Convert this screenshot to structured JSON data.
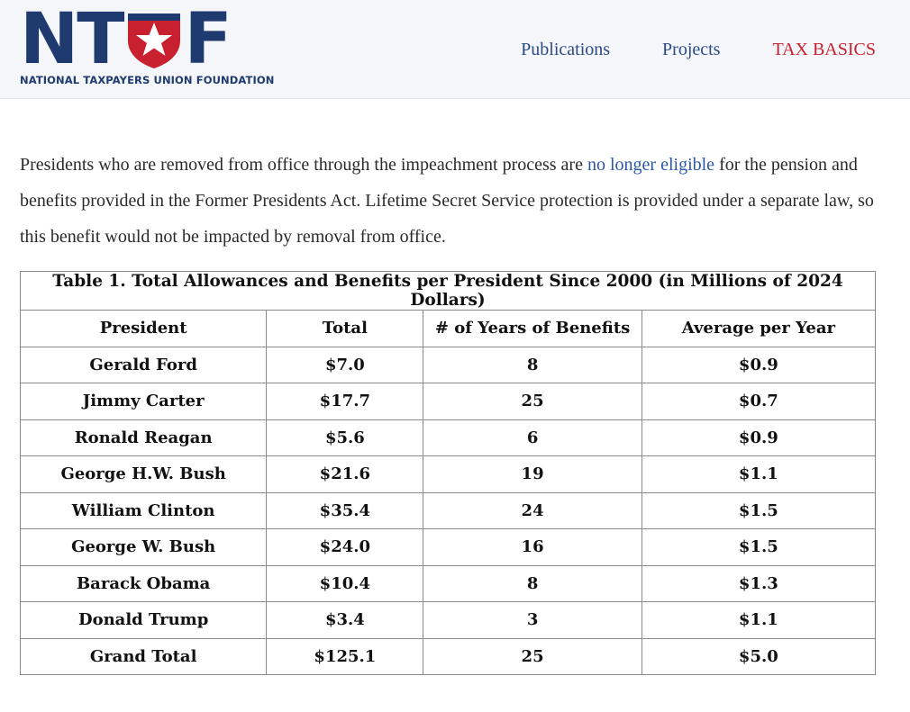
{
  "header": {
    "logo": {
      "letters": [
        "N",
        "T",
        "F"
      ],
      "subtitle": "NATIONAL TAXPAYERS UNION FOUNDATION"
    },
    "nav": [
      {
        "label": "Publications"
      },
      {
        "label": "Projects"
      },
      {
        "label": "TAX BASICS",
        "accent": "#c8202f"
      }
    ],
    "colors": {
      "brand_blue": "#1f3a6e",
      "brand_red": "#c8202f"
    }
  },
  "intro": {
    "before_link": "Presidents who are removed from office through the impeachment process are ",
    "link_text": "no longer eligible",
    "after_link": " for the pension and benefits provided in the Former Presidents Act. Lifetime Secret Service protection is provided under a separate law, so this benefit would not be impacted by removal from office."
  },
  "table": {
    "caption": "Table 1. Total Allowances and Benefits per President Since 2000 (in Millions of 2024 Dollars)",
    "headers": [
      "President",
      "Total",
      "# of Years of Benefits",
      "Average per Year"
    ],
    "rows": [
      [
        "Gerald Ford",
        "$7.0",
        "8",
        "$0.9"
      ],
      [
        "Jimmy Carter",
        "$17.7",
        "25",
        "$0.7"
      ],
      [
        "Ronald Reagan",
        "$5.6",
        "6",
        "$0.9"
      ],
      [
        "George H.W. Bush",
        "$21.6",
        "19",
        "$1.1"
      ],
      [
        "William Clinton",
        "$35.4",
        "24",
        "$1.5"
      ],
      [
        "George W. Bush",
        "$24.0",
        "16",
        "$1.5"
      ],
      [
        "Barack Obama",
        "$10.4",
        "8",
        "$1.3"
      ],
      [
        "Donald Trump",
        "$3.4",
        "3",
        "$1.1"
      ],
      [
        "Grand Total",
        "$125.1",
        "25",
        "$5.0"
      ]
    ]
  }
}
